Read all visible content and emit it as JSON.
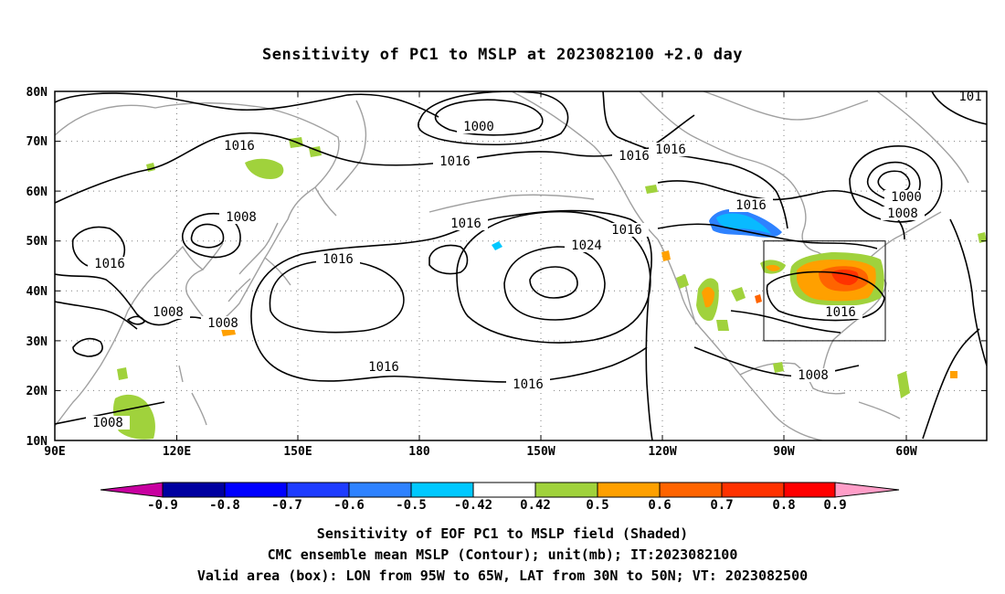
{
  "title": "Sensitivity of PC1 to MSLP at 2023082100 +2.0 day",
  "map": {
    "lat_labels": [
      "80N",
      "70N",
      "60N",
      "50N",
      "40N",
      "30N",
      "20N",
      "10N"
    ],
    "lon_labels": [
      "90E",
      "120E",
      "150E",
      "180",
      "150W",
      "120W",
      "90W",
      "60W"
    ],
    "extent": {
      "lon": [
        "90E",
        "50W"
      ],
      "lat": [
        "10N",
        "80N"
      ]
    },
    "grid": "dotted",
    "valid_box": {
      "lon": [
        "95W",
        "65W"
      ],
      "lat": [
        "30N",
        "50N"
      ]
    },
    "contour_labels": [
      "1000",
      "1000",
      "1016",
      "1016",
      "1016",
      "1016",
      "1016",
      "1016",
      "1016",
      "1016",
      "1016",
      "1016",
      "1016",
      "1016",
      "1008",
      "1008",
      "1008",
      "1008",
      "1008",
      "1008",
      "1024",
      "101"
    ],
    "colors": {
      "coast": "#a0a0a0",
      "contour": "#000000"
    }
  },
  "colorbar": {
    "labels": [
      "-0.9",
      "-0.8",
      "-0.7",
      "-0.6",
      "-0.5",
      "-0.42",
      "0.42",
      "0.5",
      "0.6",
      "0.7",
      "0.8",
      "0.9"
    ],
    "colors": [
      "#0000a0",
      "#0000ff",
      "#1e3cff",
      "#2e82ff",
      "#00c8ff",
      "#ffffff",
      "#a0d23c",
      "#ffa000",
      "#ff6400",
      "#ff3200",
      "#ff0000"
    ],
    "end_low": "#c800a0",
    "end_high": "#ff9ec8"
  },
  "captions": [
    "Sensitivity of EOF PC1 to MSLP field (Shaded)",
    "CMC ensemble mean MSLP (Contour); unit(mb); IT:2023082100",
    "Valid area (box): LON from 95W to 65W, LAT from 30N to 50N; VT: 2023082500"
  ]
}
